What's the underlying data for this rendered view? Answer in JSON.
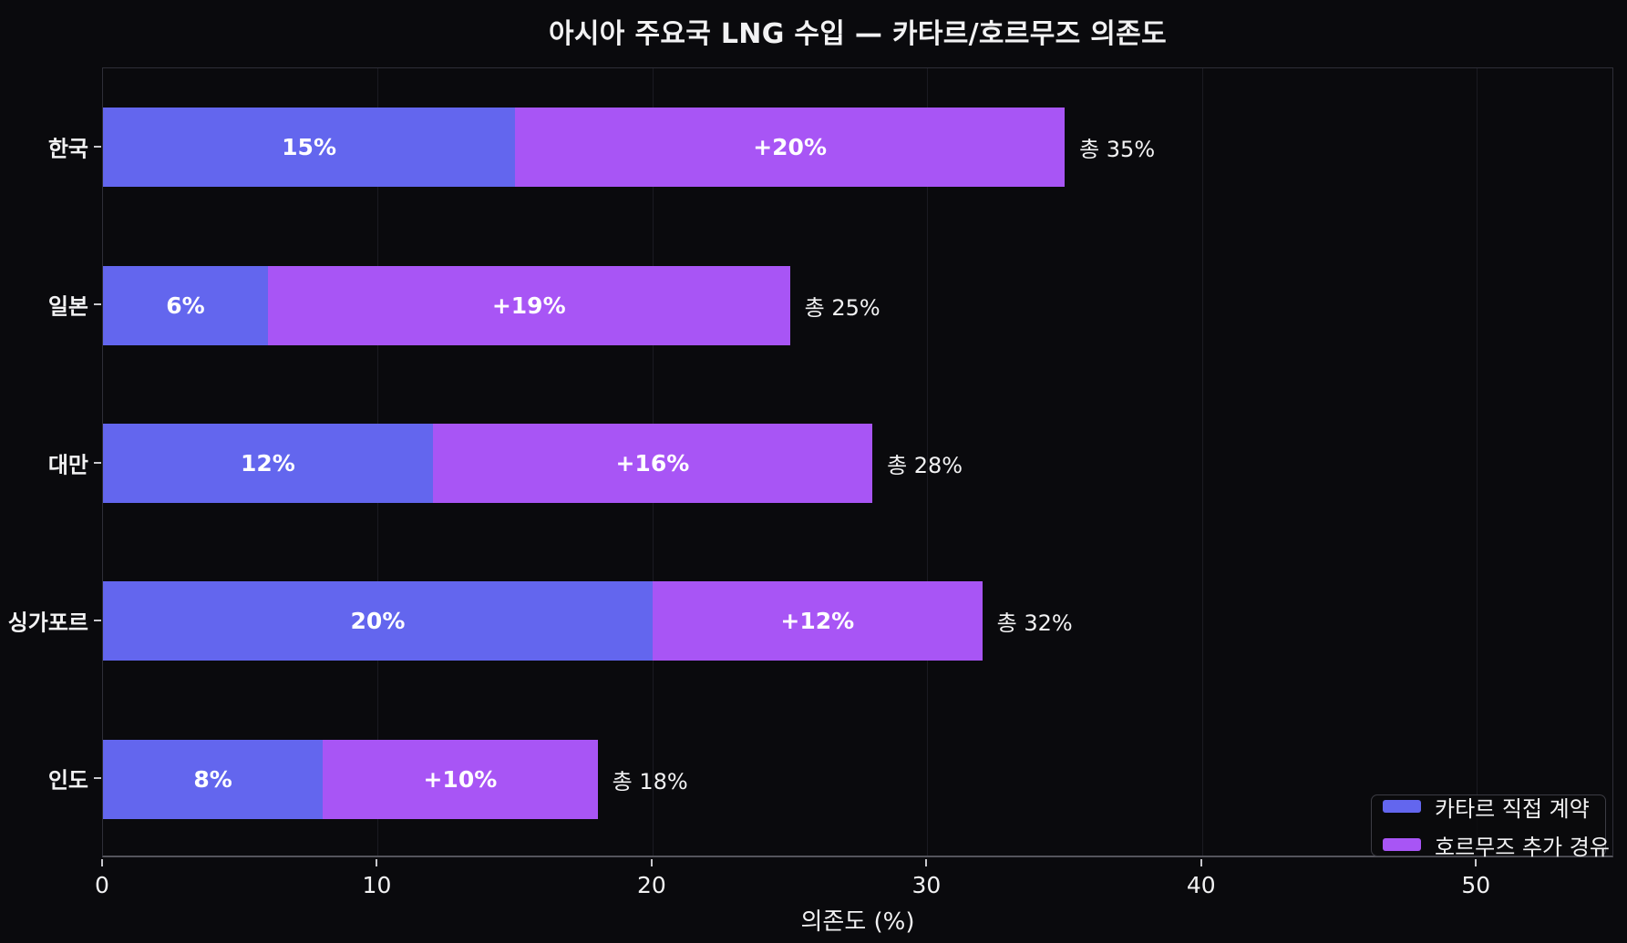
{
  "chart_data": {
    "type": "bar",
    "orientation": "horizontal",
    "stacked": true,
    "title": "아시아 주요국 LNG 수입 — 카타르/호르무즈 의존도",
    "xlabel": "의존도 (%)",
    "xlim": [
      0,
      55
    ],
    "xticks": [
      0,
      10,
      20,
      30,
      40,
      50
    ],
    "xtick_labels": [
      "0",
      "10",
      "20",
      "30",
      "40",
      "50"
    ],
    "grid": "vertical",
    "legend_position": "lower right",
    "categories": [
      "한국",
      "일본",
      "대만",
      "싱가포르",
      "인도"
    ],
    "series": [
      {
        "id": "qatar-direct",
        "name": "카타르 직접 계약",
        "color": "#6366ee",
        "values": [
          15,
          6,
          12,
          20,
          8
        ],
        "labels": [
          "15%",
          "6%",
          "12%",
          "20%",
          "8%"
        ]
      },
      {
        "id": "hormuz-transit",
        "name": "호르무즈 추가 경유",
        "color": "#a855f5",
        "values": [
          20,
          19,
          16,
          12,
          10
        ],
        "labels": [
          "+20%",
          "+19%",
          "+16%",
          "+12%",
          "+10%"
        ]
      }
    ],
    "totals": [
      35,
      25,
      28,
      32,
      18
    ],
    "total_labels": [
      "총 35%",
      "총 25%",
      "총 28%",
      "총 32%",
      "총 18%"
    ]
  },
  "colors": {
    "background": "#0a0a0d",
    "text": "#f2f2f3",
    "bar_label": "#ffffff",
    "grid": "#1b1b22",
    "spine": "#2e2e38",
    "axis_line": "#54545c",
    "tick": "#c9c9ce"
  }
}
